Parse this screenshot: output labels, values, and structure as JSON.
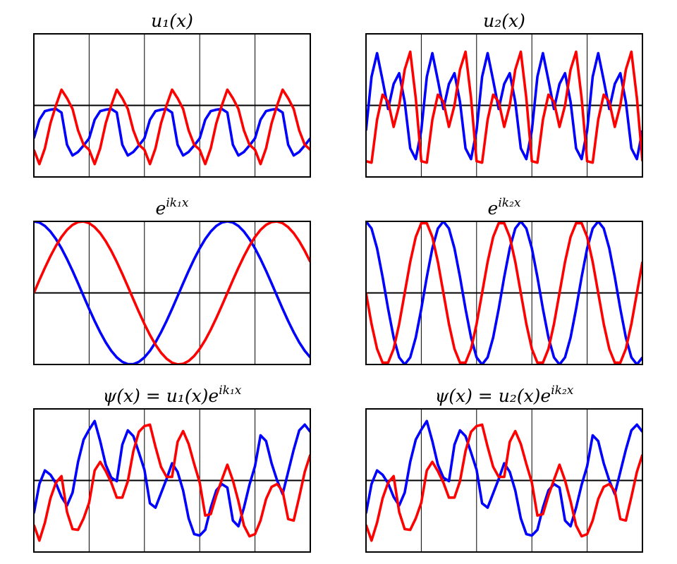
{
  "chart_data": [
    {
      "type": "line",
      "title": "u₁(x)",
      "x": [
        0,
        0.1,
        0.2,
        0.3,
        0.4,
        0.5,
        0.6,
        0.7,
        0.8,
        0.9,
        1,
        1.1,
        1.2,
        1.3,
        1.4,
        1.5,
        1.6,
        1.7,
        1.8,
        1.9,
        2,
        2.1,
        2.2,
        2.3,
        2.4,
        2.5,
        2.6,
        2.7,
        2.8,
        2.9,
        3,
        3.1,
        3.2,
        3.3,
        3.4,
        3.5,
        3.6,
        3.7,
        3.8,
        3.9,
        4,
        4.1,
        4.2,
        4.3,
        4.4,
        4.5,
        4.6,
        4.7,
        4.8,
        4.9,
        5
      ],
      "series": [
        {
          "color": "#0000ff",
          "values": [
            -0.46,
            -0.2,
            -0.08,
            -0.06,
            -0.05,
            -0.1,
            -0.55,
            -0.7,
            -0.65,
            -0.56,
            -0.46,
            -0.2,
            -0.08,
            -0.06,
            -0.05,
            -0.1,
            -0.55,
            -0.7,
            -0.65,
            -0.56,
            -0.46,
            -0.2,
            -0.08,
            -0.06,
            -0.05,
            -0.1,
            -0.55,
            -0.7,
            -0.65,
            -0.56,
            -0.46,
            -0.2,
            -0.08,
            -0.06,
            -0.05,
            -0.1,
            -0.55,
            -0.7,
            -0.65,
            -0.56,
            -0.46,
            -0.2,
            -0.08,
            -0.06,
            -0.05,
            -0.1,
            -0.55,
            -0.7,
            -0.65,
            -0.56,
            -0.46
          ]
        },
        {
          "color": "#ff0000",
          "values": [
            -0.62,
            -0.82,
            -0.6,
            -0.25,
            0,
            0.22,
            0.1,
            -0.05,
            -0.35,
            -0.55,
            -0.62,
            -0.82,
            -0.6,
            -0.25,
            0,
            0.22,
            0.1,
            -0.05,
            -0.35,
            -0.55,
            -0.62,
            -0.82,
            -0.6,
            -0.25,
            0,
            0.22,
            0.1,
            -0.05,
            -0.35,
            -0.55,
            -0.62,
            -0.82,
            -0.6,
            -0.25,
            0,
            0.22,
            0.1,
            -0.05,
            -0.35,
            -0.55,
            -0.62,
            -0.82,
            -0.6,
            -0.25,
            0,
            0.22,
            0.1,
            -0.05,
            -0.35,
            -0.55,
            -0.62
          ]
        }
      ],
      "xlim": [
        0,
        5
      ],
      "ylim": [
        -1,
        1
      ],
      "grid_x": [
        1,
        2,
        3,
        4
      ],
      "grid_y": [
        0
      ]
    },
    {
      "type": "line",
      "title": "u₂(x)",
      "x": [
        0,
        0.1,
        0.2,
        0.3,
        0.4,
        0.5,
        0.6,
        0.7,
        0.8,
        0.9,
        1,
        1.1,
        1.2,
        1.3,
        1.4,
        1.5,
        1.6,
        1.7,
        1.8,
        1.9,
        2,
        2.1,
        2.2,
        2.3,
        2.4,
        2.5,
        2.6,
        2.7,
        2.8,
        2.9,
        3,
        3.1,
        3.2,
        3.3,
        3.4,
        3.5,
        3.6,
        3.7,
        3.8,
        3.9,
        4,
        4.1,
        4.2,
        4.3,
        4.4,
        4.5,
        4.6,
        4.7,
        4.8,
        4.9,
        5
      ],
      "series": [
        {
          "color": "#0000ff",
          "values": [
            -0.35,
            0.4,
            0.73,
            0.35,
            -0.05,
            0.3,
            0.45,
            0.05,
            -0.6,
            -0.75,
            -0.35,
            0.4,
            0.73,
            0.35,
            -0.05,
            0.3,
            0.45,
            0.05,
            -0.6,
            -0.75,
            -0.35,
            0.4,
            0.73,
            0.35,
            -0.05,
            0.3,
            0.45,
            0.05,
            -0.6,
            -0.75,
            -0.35,
            0.4,
            0.73,
            0.35,
            -0.05,
            0.3,
            0.45,
            0.05,
            -0.6,
            -0.75,
            -0.35,
            0.4,
            0.73,
            0.35,
            -0.05,
            0.3,
            0.45,
            0.05,
            -0.6,
            -0.75,
            -0.35
          ]
        },
        {
          "color": "#ff0000",
          "values": [
            -0.78,
            -0.8,
            -0.2,
            0.15,
            0.05,
            -0.3,
            0,
            0.5,
            0.75,
            0.1,
            -0.78,
            -0.8,
            -0.2,
            0.15,
            0.05,
            -0.3,
            0,
            0.5,
            0.75,
            0.1,
            -0.78,
            -0.8,
            -0.2,
            0.15,
            0.05,
            -0.3,
            0,
            0.5,
            0.75,
            0.1,
            -0.78,
            -0.8,
            -0.2,
            0.15,
            0.05,
            -0.3,
            0,
            0.5,
            0.75,
            0.1,
            -0.78,
            -0.8,
            -0.2,
            0.15,
            0.05,
            -0.3,
            0,
            0.5,
            0.75,
            0.1,
            -0.78
          ]
        }
      ],
      "xlim": [
        0,
        5
      ],
      "ylim": [
        -1,
        1
      ],
      "grid_x": [
        1,
        2,
        3,
        4
      ],
      "grid_y": [
        0
      ]
    },
    {
      "type": "line",
      "title": {
        "text": "e",
        "sup": "ik₁x"
      },
      "x": [
        0,
        0.1,
        0.2,
        0.3,
        0.4,
        0.5,
        0.6,
        0.7,
        0.8,
        0.9,
        1,
        1.1,
        1.2,
        1.3,
        1.4,
        1.5,
        1.6,
        1.7,
        1.8,
        1.9,
        2,
        2.1,
        2.2,
        2.3,
        2.4,
        2.5,
        2.6,
        2.7,
        2.8,
        2.9,
        3,
        3.1,
        3.2,
        3.3,
        3.4,
        3.5,
        3.6,
        3.7,
        3.8,
        3.9,
        4,
        4.1,
        4.2,
        4.3,
        4.4,
        4.5,
        4.6,
        4.7,
        4.8,
        4.9,
        5
      ],
      "series": [
        {
          "color": "#0000ff",
          "values": [
            1,
            0.984,
            0.936,
            0.858,
            0.753,
            0.623,
            0.473,
            0.309,
            0.134,
            -0.045,
            -0.223,
            -0.393,
            -0.55,
            -0.691,
            -0.809,
            -0.901,
            -0.963,
            -0.995,
            -0.995,
            -0.963,
            -0.901,
            -0.809,
            -0.691,
            -0.55,
            -0.393,
            -0.223,
            -0.045,
            0.134,
            0.309,
            0.473,
            0.623,
            0.753,
            0.858,
            0.936,
            0.984,
            1,
            0.984,
            0.936,
            0.858,
            0.753,
            0.623,
            0.473,
            0.309,
            0.134,
            -0.045,
            -0.223,
            -0.393,
            -0.55,
            -0.691,
            -0.809,
            -0.901
          ]
        },
        {
          "color": "#ff0000",
          "values": [
            0,
            0.179,
            0.351,
            0.513,
            0.658,
            0.782,
            0.881,
            0.951,
            0.991,
            0.999,
            0.975,
            0.919,
            0.835,
            0.723,
            0.588,
            0.434,
            0.266,
            0.09,
            -0.09,
            -0.266,
            -0.434,
            -0.588,
            -0.723,
            -0.835,
            -0.919,
            -0.975,
            -0.999,
            -0.991,
            -0.951,
            -0.881,
            -0.782,
            -0.658,
            -0.513,
            -0.351,
            -0.179,
            0,
            0.179,
            0.351,
            0.513,
            0.658,
            0.782,
            0.881,
            0.951,
            0.991,
            0.999,
            0.975,
            0.919,
            0.835,
            0.723,
            0.588,
            0.434
          ]
        }
      ],
      "xlim": [
        0,
        5
      ],
      "ylim": [
        -1,
        1
      ],
      "grid_x": [
        1,
        2,
        3,
        4
      ],
      "grid_y": [
        0
      ]
    },
    {
      "type": "line",
      "title": {
        "text": "e",
        "sup": "ik₂x"
      },
      "x": [
        0,
        0.1,
        0.2,
        0.3,
        0.4,
        0.5,
        0.6,
        0.7,
        0.8,
        0.9,
        1,
        1.1,
        1.2,
        1.3,
        1.4,
        1.5,
        1.6,
        1.7,
        1.8,
        1.9,
        2,
        2.1,
        2.2,
        2.3,
        2.4,
        2.5,
        2.6,
        2.7,
        2.8,
        2.9,
        3,
        3.1,
        3.2,
        3.3,
        3.4,
        3.5,
        3.6,
        3.7,
        3.8,
        3.9,
        4,
        4.1,
        4.2,
        4.3,
        4.4,
        4.5,
        4.6,
        4.7,
        4.8,
        4.9,
        5
      ],
      "series": [
        {
          "color": "#0000ff",
          "values": [
            1,
            0.901,
            0.623,
            0.223,
            -0.223,
            -0.623,
            -0.901,
            -1,
            -0.901,
            -0.623,
            -0.223,
            0.223,
            0.623,
            0.901,
            1,
            0.901,
            0.623,
            0.223,
            -0.223,
            -0.623,
            -0.901,
            -1,
            -0.901,
            -0.623,
            -0.223,
            0.223,
            0.623,
            0.901,
            1,
            0.901,
            0.623,
            0.223,
            -0.223,
            -0.623,
            -0.901,
            -1,
            -0.901,
            -0.623,
            -0.223,
            0.223,
            0.623,
            0.901,
            1,
            0.901,
            0.623,
            0.223,
            -0.223,
            -0.623,
            -0.901,
            -1,
            -0.901
          ]
        },
        {
          "color": "#ff0000",
          "values": [
            0,
            -0.434,
            -0.782,
            -0.975,
            -0.975,
            -0.782,
            -0.434,
            0,
            0.434,
            0.782,
            0.975,
            0.975,
            0.782,
            0.434,
            0,
            -0.434,
            -0.782,
            -0.975,
            -0.975,
            -0.782,
            -0.434,
            0,
            0.434,
            0.782,
            0.975,
            0.975,
            0.782,
            0.434,
            0,
            -0.434,
            -0.782,
            -0.975,
            -0.975,
            -0.782,
            -0.434,
            0,
            0.434,
            0.782,
            0.975,
            0.975,
            0.782,
            0.434,
            0,
            -0.434,
            -0.782,
            -0.975,
            -0.975,
            -0.782,
            -0.434,
            0,
            0.434
          ]
        }
      ],
      "xlim": [
        0,
        5
      ],
      "ylim": [
        -1,
        1
      ],
      "grid_x": [
        1,
        2,
        3,
        4
      ],
      "grid_y": [
        0
      ]
    },
    {
      "type": "line",
      "title": {
        "text": "ψ(x) = u₁(x)e",
        "sup": "ik₁x"
      },
      "x": [
        0,
        0.1,
        0.2,
        0.3,
        0.4,
        0.5,
        0.6,
        0.7,
        0.8,
        0.9,
        1,
        1.1,
        1.2,
        1.3,
        1.4,
        1.5,
        1.6,
        1.7,
        1.8,
        1.9,
        2,
        2.1,
        2.2,
        2.3,
        2.4,
        2.5,
        2.6,
        2.7,
        2.8,
        2.9,
        3,
        3.1,
        3.2,
        3.3,
        3.4,
        3.5,
        3.6,
        3.7,
        3.8,
        3.9,
        4,
        4.1,
        4.2,
        4.3,
        4.4,
        4.5,
        4.6,
        4.7,
        4.8,
        4.9,
        5
      ],
      "series": [
        {
          "color": "#0000ff",
          "values": [
            -0.46,
            -0.05,
            0.14,
            0.08,
            -0.04,
            -0.23,
            -0.35,
            -0.17,
            0.26,
            0.57,
            0.71,
            0.83,
            0.55,
            0.22,
            0.04,
            -0.01,
            0.5,
            0.7,
            0.62,
            0.39,
            0.15,
            -0.32,
            -0.38,
            -0.18,
            0.02,
            0.24,
            0.12,
            -0.14,
            -0.53,
            -0.75,
            -0.77,
            -0.69,
            -0.38,
            -0.14,
            -0.05,
            -0.1,
            -0.56,
            -0.64,
            -0.38,
            -0.06,
            0.2,
            0.63,
            0.55,
            0.24,
            0,
            -0.19,
            0.12,
            0.43,
            0.7,
            0.78,
            0.68
          ]
        },
        {
          "color": "#ff0000",
          "values": [
            -0.62,
            -0.84,
            -0.59,
            -0.25,
            -0.03,
            0.06,
            -0.44,
            -0.68,
            -0.69,
            -0.53,
            -0.31,
            0.14,
            0.26,
            0.13,
            -0.03,
            -0.24,
            -0.24,
            -0.01,
            0.41,
            0.68,
            0.76,
            0.78,
            0.47,
            0.19,
            0.05,
            0.05,
            0.54,
            0.69,
            0.51,
            0.23,
            -0.03,
            -0.49,
            -0.47,
            -0.21,
            0.01,
            0.22,
            0,
            -0.29,
            -0.63,
            -0.78,
            -0.75,
            -0.56,
            -0.26,
            -0.09,
            -0.05,
            -0.15,
            -0.54,
            -0.56,
            -0.23,
            0.12,
            0.36
          ]
        }
      ],
      "xlim": [
        0,
        5
      ],
      "ylim": [
        -1,
        1
      ],
      "grid_x": [
        1,
        2,
        3,
        4
      ],
      "grid_y": [
        0
      ]
    },
    {
      "type": "line",
      "title": {
        "text": "ψ(x) = u₂(x)e",
        "sup": "ik₂x"
      },
      "x": [
        0,
        0.1,
        0.2,
        0.3,
        0.4,
        0.5,
        0.6,
        0.7,
        0.8,
        0.9,
        1,
        1.1,
        1.2,
        1.3,
        1.4,
        1.5,
        1.6,
        1.7,
        1.8,
        1.9,
        2,
        2.1,
        2.2,
        2.3,
        2.4,
        2.5,
        2.6,
        2.7,
        2.8,
        2.9,
        3,
        3.1,
        3.2,
        3.3,
        3.4,
        3.5,
        3.6,
        3.7,
        3.8,
        3.9,
        4,
        4.1,
        4.2,
        4.3,
        4.4,
        4.5,
        4.6,
        4.7,
        4.8,
        4.9,
        5
      ],
      "series": [
        {
          "color": "#0000ff",
          "values": [
            -0.46,
            -0.05,
            0.14,
            0.08,
            -0.04,
            -0.23,
            -0.35,
            -0.17,
            0.26,
            0.57,
            0.71,
            0.83,
            0.55,
            0.22,
            0.04,
            -0.01,
            0.5,
            0.7,
            0.62,
            0.39,
            0.15,
            -0.32,
            -0.38,
            -0.18,
            0.02,
            0.24,
            0.12,
            -0.14,
            -0.53,
            -0.75,
            -0.77,
            -0.69,
            -0.38,
            -0.14,
            -0.05,
            -0.1,
            -0.56,
            -0.64,
            -0.38,
            -0.06,
            0.2,
            0.63,
            0.55,
            0.24,
            0,
            -0.19,
            0.12,
            0.43,
            0.7,
            0.78,
            0.68
          ]
        },
        {
          "color": "#ff0000",
          "values": [
            -0.62,
            -0.84,
            -0.59,
            -0.25,
            -0.03,
            0.06,
            -0.44,
            -0.68,
            -0.69,
            -0.53,
            -0.31,
            0.14,
            0.26,
            0.13,
            -0.03,
            -0.24,
            -0.24,
            -0.01,
            0.41,
            0.68,
            0.76,
            0.78,
            0.47,
            0.19,
            0.05,
            0.05,
            0.54,
            0.69,
            0.51,
            0.23,
            -0.03,
            -0.49,
            -0.47,
            -0.21,
            0.01,
            0.22,
            0,
            -0.29,
            -0.63,
            -0.78,
            -0.75,
            -0.56,
            -0.26,
            -0.09,
            -0.05,
            -0.15,
            -0.54,
            -0.56,
            -0.23,
            0.12,
            0.36
          ]
        }
      ],
      "xlim": [
        0,
        5
      ],
      "ylim": [
        -1,
        1
      ],
      "grid_x": [
        1,
        2,
        3,
        4
      ],
      "grid_y": [
        0
      ]
    }
  ]
}
